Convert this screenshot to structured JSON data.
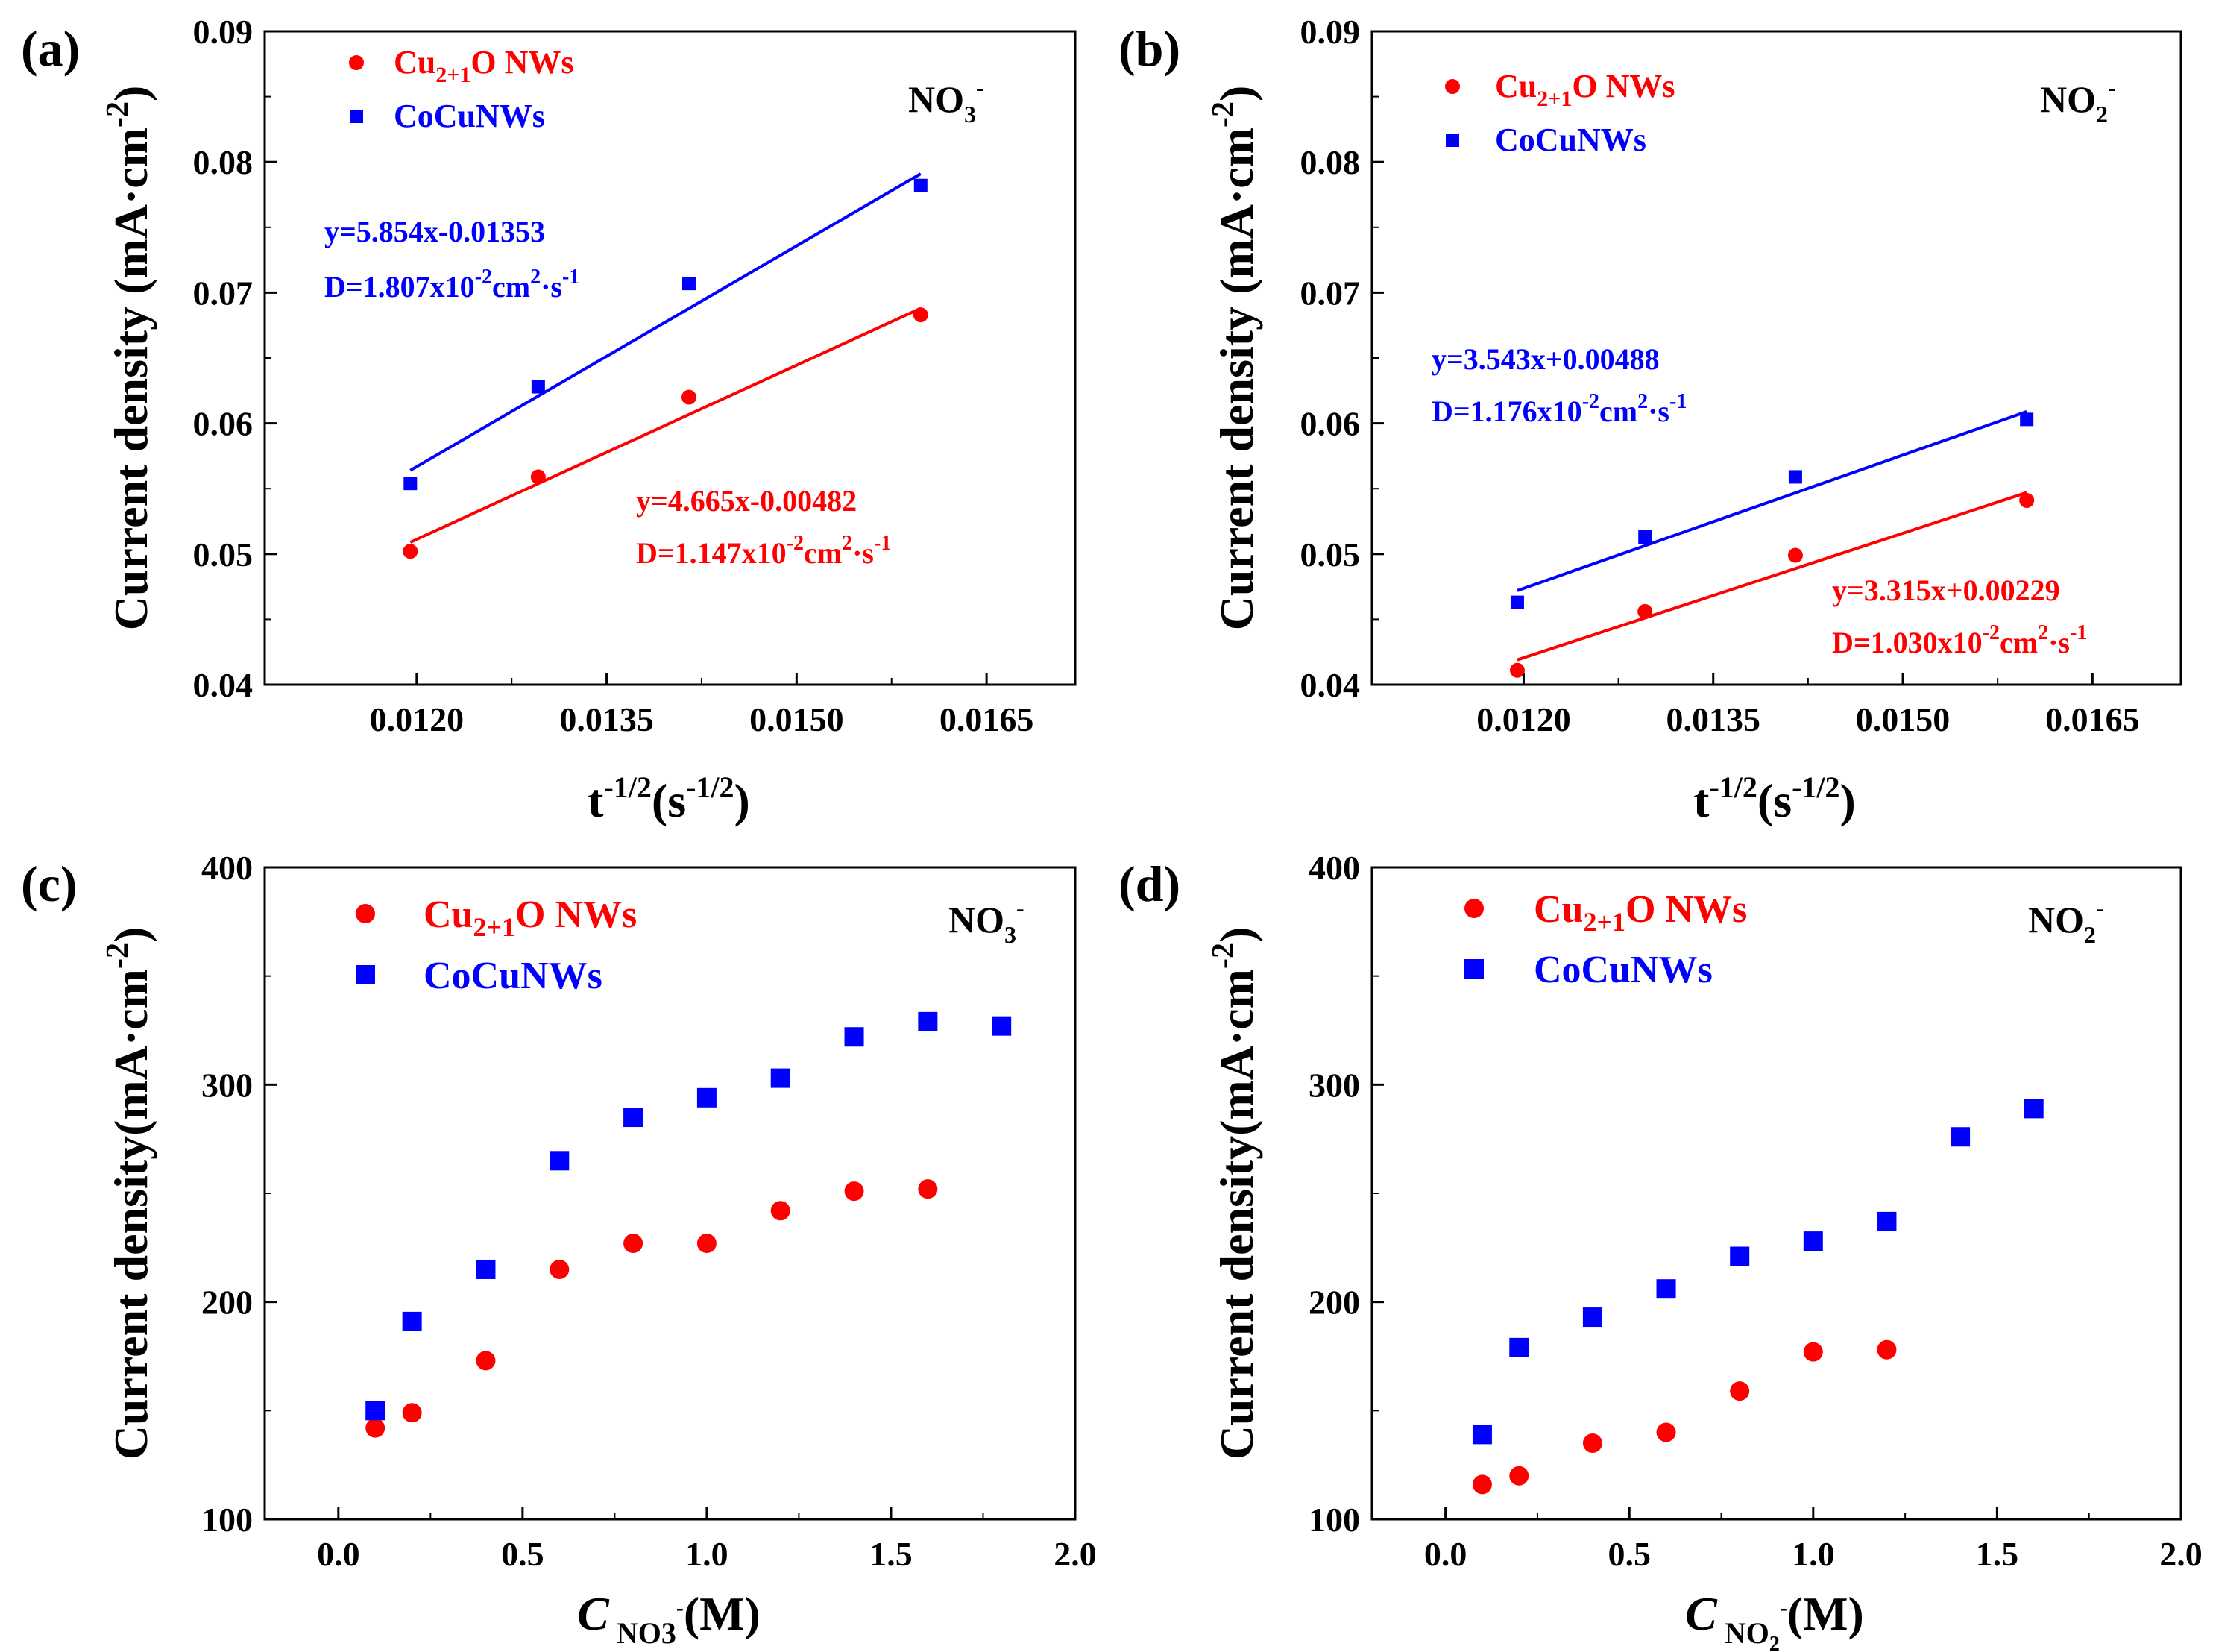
{
  "figure": {
    "panel_count": 4
  },
  "chart_data": [
    {
      "panel": "(a)",
      "type": "scatter",
      "ion_label": {
        "main": "NO",
        "sub": "3",
        "sup": "-"
      },
      "xlabel": {
        "main": "t",
        "sup1": "-1/2",
        "paren_open": "(s",
        "sup2": "-1/2",
        "paren_close": ")"
      },
      "ylabel": {
        "main": "Current density (mA·cm",
        "sup": "-2",
        "close": ")"
      },
      "xlim": [
        0.0108,
        0.0172
      ],
      "ylim": [
        0.04,
        0.09
      ],
      "xticks": [
        0.012,
        0.0135,
        0.015,
        0.0165
      ],
      "xtick_labels": [
        "0.0120",
        "0.0135",
        "0.0150",
        "0.0165"
      ],
      "yticks": [
        0.04,
        0.05,
        0.06,
        0.07,
        0.08,
        0.09
      ],
      "ytick_labels": [
        "0.04",
        "0.05",
        "0.06",
        "0.07",
        "0.08",
        "0.09"
      ],
      "series": [
        {
          "name": "Cu2+1O NWs",
          "legend": {
            "main": "Cu",
            "sub": "2+1",
            "rest": "O NWs"
          },
          "marker": "circle",
          "color": "#ff0000",
          "x": [
            0.01195,
            0.01296,
            0.01415,
            0.01598
          ],
          "y": [
            0.0502,
            0.0559,
            0.062,
            0.0683
          ],
          "fit": {
            "x": [
              0.01195,
              0.01598
            ],
            "y": [
              0.0509,
              0.0688
            ]
          },
          "equation": "y=4.665x-0.00482",
          "diffusion": {
            "d": "D=1.147x10",
            "exp": "-2",
            "unit": "cm",
            "unit_exp": "2",
            "dot": "·s",
            "dot_exp": "-1"
          }
        },
        {
          "name": "CoCuNWs",
          "legend": {
            "main": "CoCuNWs"
          },
          "marker": "square",
          "color": "#0000ff",
          "x": [
            0.01195,
            0.01296,
            0.01415,
            0.01598
          ],
          "y": [
            0.0554,
            0.0628,
            0.0707,
            0.0782
          ],
          "fit": {
            "x": [
              0.01195,
              0.01598
            ],
            "y": [
              0.0564,
              0.0791
            ]
          },
          "equation": "y=5.854x-0.01353",
          "diffusion": {
            "d": "D=1.807x10",
            "exp": "-2",
            "unit": "cm",
            "unit_exp": "2",
            "dot": "·s",
            "dot_exp": "-1"
          }
        }
      ]
    },
    {
      "panel": "(b)",
      "type": "scatter",
      "ion_label": {
        "main": "NO",
        "sub": "2",
        "sup": "-"
      },
      "xlabel": {
        "main": "t",
        "sup1": "-1/2",
        "paren_open": "(s",
        "sup2": "-1/2",
        "paren_close": ")"
      },
      "ylabel": {
        "main": "Current density (mA·cm",
        "sup": "-2",
        "close": ")"
      },
      "xlim": [
        0.0108,
        0.0172
      ],
      "ylim": [
        0.04,
        0.09
      ],
      "xticks": [
        0.012,
        0.0135,
        0.015,
        0.0165
      ],
      "xtick_labels": [
        "0.0120",
        "0.0135",
        "0.0150",
        "0.0165"
      ],
      "yticks": [
        0.04,
        0.05,
        0.06,
        0.07,
        0.08,
        0.09
      ],
      "ytick_labels": [
        "0.04",
        "0.05",
        "0.06",
        "0.07",
        "0.08",
        "0.09"
      ],
      "series": [
        {
          "name": "Cu2+1O NWs",
          "legend": {
            "main": "Cu",
            "sub": "2+1",
            "rest": "O NWs"
          },
          "marker": "circle",
          "color": "#ff0000",
          "x": [
            0.01195,
            0.01296,
            0.01415,
            0.01598
          ],
          "y": [
            0.0411,
            0.0456,
            0.0499,
            0.0541
          ],
          "fit": {
            "x": [
              0.01195,
              0.01598
            ],
            "y": [
              0.0419,
              0.0547
            ]
          },
          "equation": "y=3.315x+0.00229",
          "diffusion": {
            "d": "D=1.030x10",
            "exp": "-2",
            "unit": "cm",
            "unit_exp": "2",
            "dot": "·s",
            "dot_exp": "-1"
          }
        },
        {
          "name": "CoCuNWs",
          "legend": {
            "main": "CoCuNWs"
          },
          "marker": "square",
          "color": "#0000ff",
          "x": [
            0.01195,
            0.01296,
            0.01415,
            0.01598
          ],
          "y": [
            0.0463,
            0.0513,
            0.0559,
            0.0603
          ],
          "fit": {
            "x": [
              0.01195,
              0.01598
            ],
            "y": [
              0.0472,
              0.0609
            ]
          },
          "equation": "y=3.543x+0.00488",
          "diffusion": {
            "d": "D=1.176x10",
            "exp": "-2",
            "unit": "cm",
            "unit_exp": "2",
            "dot": "·s",
            "dot_exp": "-1"
          }
        }
      ]
    },
    {
      "panel": "(c)",
      "type": "scatter",
      "ion_label": {
        "main": "NO",
        "sub": "3",
        "sup": "-"
      },
      "xlabel": {
        "italic": "C",
        "sub": "NO3",
        "sub_sup": "-",
        "rest": "(M)"
      },
      "ylabel": {
        "main": "Current density(mA·cm",
        "sup": "-2",
        "close": ")"
      },
      "xlim": [
        -0.2,
        2.0
      ],
      "ylim": [
        100,
        400
      ],
      "xticks": [
        0.0,
        0.5,
        1.0,
        1.5,
        2.0
      ],
      "xtick_labels": [
        "0.0",
        "0.5",
        "1.0",
        "1.5",
        "2.0"
      ],
      "yticks": [
        100,
        200,
        300,
        400
      ],
      "ytick_labels": [
        "100",
        "200",
        "300",
        "400"
      ],
      "series": [
        {
          "name": "Cu2+1O NWs",
          "legend": {
            "main": "Cu",
            "sub": "2+1",
            "rest": "O NWs"
          },
          "marker": "circle",
          "color": "#ff0000",
          "x": [
            0.1,
            0.2,
            0.4,
            0.6,
            0.8,
            1.0,
            1.2,
            1.4,
            1.6
          ],
          "y": [
            142,
            149,
            173,
            215,
            227,
            227,
            242,
            251,
            252
          ]
        },
        {
          "name": "CoCuNWs",
          "legend": {
            "main": "CoCuNWs"
          },
          "marker": "square",
          "color": "#0000ff",
          "x": [
            0.1,
            0.2,
            0.4,
            0.6,
            0.8,
            1.0,
            1.2,
            1.4,
            1.6,
            1.8
          ],
          "y": [
            150,
            191,
            215,
            265,
            285,
            294,
            303,
            322,
            329,
            327
          ]
        }
      ]
    },
    {
      "panel": "(d)",
      "type": "scatter",
      "ion_label": {
        "main": "NO",
        "sub": "2",
        "sup": "-"
      },
      "xlabel": {
        "italic": "C",
        "sub": "NO",
        "sub2": "2",
        "sub_sup": "-",
        "rest": "(M)"
      },
      "ylabel": {
        "main": "Current density(mA·cm",
        "sup": "-2",
        "close": ")"
      },
      "xlim": [
        -0.2,
        2.0
      ],
      "ylim": [
        100,
        400
      ],
      "xticks": [
        0.0,
        0.5,
        1.0,
        1.5,
        2.0
      ],
      "xtick_labels": [
        "0.0",
        "0.5",
        "1.0",
        "1.5",
        "2.0"
      ],
      "yticks": [
        100,
        200,
        300,
        400
      ],
      "ytick_labels": [
        "100",
        "200",
        "300",
        "400"
      ],
      "series": [
        {
          "name": "Cu2+1O NWs",
          "legend": {
            "main": "Cu",
            "sub": "2+1",
            "rest": "O NWs"
          },
          "marker": "circle",
          "color": "#ff0000",
          "x": [
            0.1,
            0.2,
            0.4,
            0.6,
            0.8,
            1.0,
            1.2
          ],
          "y": [
            116,
            120,
            135,
            140,
            159,
            177,
            178
          ]
        },
        {
          "name": "CoCuNWs",
          "legend": {
            "main": "CoCuNWs"
          },
          "marker": "square",
          "color": "#0000ff",
          "x": [
            0.1,
            0.2,
            0.4,
            0.6,
            0.8,
            1.0,
            1.2,
            1.4,
            1.6
          ],
          "y": [
            139,
            179,
            193,
            206,
            221,
            228,
            237,
            276,
            289
          ]
        }
      ]
    }
  ]
}
